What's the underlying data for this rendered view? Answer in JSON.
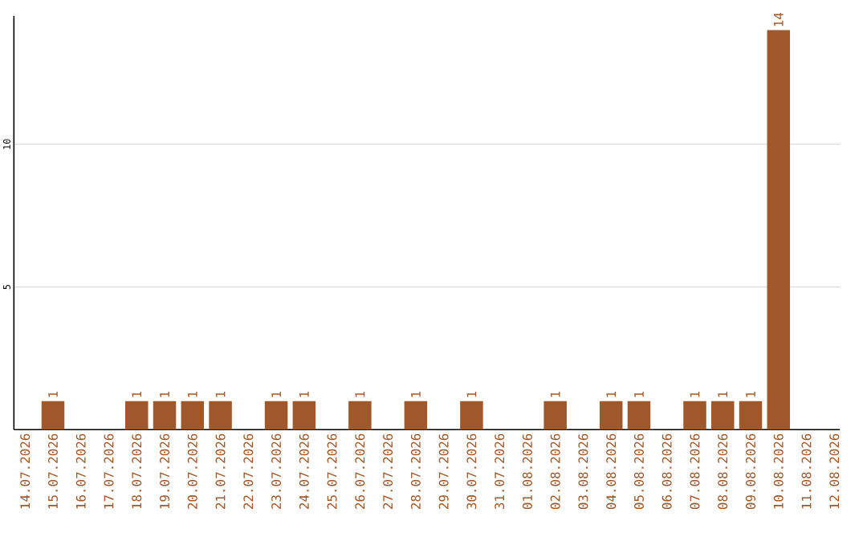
{
  "chart_data": {
    "type": "bar",
    "categories": [
      "14.07.2026",
      "15.07.2026",
      "16.07.2026",
      "17.07.2026",
      "18.07.2026",
      "19.07.2026",
      "20.07.2026",
      "21.07.2026",
      "22.07.2026",
      "23.07.2026",
      "24.07.2026",
      "25.07.2026",
      "26.07.2026",
      "27.07.2026",
      "28.07.2026",
      "29.07.2026",
      "30.07.2026",
      "31.07.2026",
      "01.08.2026",
      "02.08.2026",
      "03.08.2026",
      "04.08.2026",
      "05.08.2026",
      "06.08.2026",
      "07.08.2026",
      "08.08.2026",
      "09.08.2026",
      "10.08.2026",
      "11.08.2026",
      "12.08.2026"
    ],
    "values": [
      0,
      1,
      0,
      0,
      1,
      1,
      1,
      1,
      0,
      1,
      1,
      0,
      1,
      0,
      1,
      0,
      1,
      0,
      0,
      1,
      0,
      1,
      1,
      0,
      1,
      1,
      1,
      14,
      0,
      0
    ],
    "value_labels": [
      null,
      "1",
      null,
      null,
      "1",
      "1",
      "1",
      "1",
      null,
      "1",
      "1",
      null,
      "1",
      null,
      "1",
      null,
      "1",
      null,
      null,
      "1",
      null,
      "1",
      "1",
      null,
      "1",
      "1",
      "1",
      "14",
      null,
      null
    ],
    "color": "#a0582a",
    "ylim": [
      0,
      14.5
    ],
    "yticks": [
      5,
      10
    ],
    "grid": "y"
  }
}
